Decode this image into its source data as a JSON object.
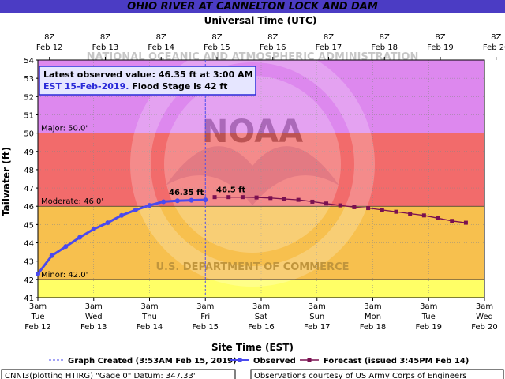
{
  "chart_data": {
    "type": "line",
    "title": "OHIO RIVER AT CANNELTON LOCK AND DAM",
    "top_axis_label": "Universal Time (UTC)",
    "xlabel": "Site Time (EST)",
    "ylabel": "Tailwater (ft)",
    "ylim": [
      41,
      54
    ],
    "xlim_days": [
      "Feb 12 3am",
      "Feb 20 3am"
    ],
    "grid": true,
    "yticks": [
      41,
      42,
      43,
      44,
      45,
      46,
      47,
      48,
      49,
      50,
      51,
      52,
      53,
      54
    ],
    "top_ticks": [
      {
        "l1": "8Z",
        "l2": "Feb 12"
      },
      {
        "l1": "8Z",
        "l2": "Feb 13"
      },
      {
        "l1": "8Z",
        "l2": "Feb 14"
      },
      {
        "l1": "8Z",
        "l2": "Feb 15"
      },
      {
        "l1": "8Z",
        "l2": "Feb 16"
      },
      {
        "l1": "8Z",
        "l2": "Feb 17"
      },
      {
        "l1": "8Z",
        "l2": "Feb 18"
      },
      {
        "l1": "8Z",
        "l2": "Feb 19"
      },
      {
        "l1": "8Z",
        "l2": "Feb 20"
      }
    ],
    "bottom_ticks": [
      {
        "l1": "3am",
        "l2": "Tue",
        "l3": "Feb 12"
      },
      {
        "l1": "3am",
        "l2": "Wed",
        "l3": "Feb 13"
      },
      {
        "l1": "3am",
        "l2": "Thu",
        "l3": "Feb 14"
      },
      {
        "l1": "3am",
        "l2": "Fri",
        "l3": "Feb 15"
      },
      {
        "l1": "3am",
        "l2": "Sat",
        "l3": "Feb 16"
      },
      {
        "l1": "3am",
        "l2": "Sun",
        "l3": "Feb 17"
      },
      {
        "l1": "3am",
        "l2": "Mon",
        "l3": "Feb 18"
      },
      {
        "l1": "3am",
        "l2": "Tue",
        "l3": "Feb 19"
      },
      {
        "l1": "3am",
        "l2": "Wed",
        "l3": "Feb 20"
      }
    ],
    "bands": [
      {
        "from": 41,
        "to": 42,
        "color": "#ffff66"
      },
      {
        "from": 42,
        "to": 46,
        "color": "#f7c04e"
      },
      {
        "from": 46,
        "to": 50,
        "color": "#f26b6b"
      },
      {
        "from": 50,
        "to": 54,
        "color": "#dd88ee"
      }
    ],
    "flood_lines": [
      {
        "label": "Minor:  42.0'",
        "value": 42
      },
      {
        "label": "Moderate:  46.0'",
        "value": 46
      },
      {
        "label": "Major:  50.0'",
        "value": 50
      }
    ],
    "graph_created": "Feb 15 3am",
    "series": [
      {
        "name": "Observed",
        "color": "#4a4aee",
        "point_label": "46.35 ft",
        "x": [
          "Feb 12 3am",
          "Feb 12 9am",
          "Feb 12 3pm",
          "Feb 12 9pm",
          "Feb 13 3am",
          "Feb 13 9am",
          "Feb 13 3pm",
          "Feb 13 9pm",
          "Feb 14 3am",
          "Feb 14 9am",
          "Feb 14 3pm",
          "Feb 14 9pm",
          "Feb 15 3am"
        ],
        "y": [
          42.3,
          43.3,
          43.8,
          44.3,
          44.75,
          45.1,
          45.5,
          45.8,
          46.05,
          46.25,
          46.3,
          46.33,
          46.35
        ]
      },
      {
        "name": "Forecast (issued 3:45PM Feb 14)",
        "color": "#7a1050",
        "point_label": "46.5 ft",
        "x": [
          "Feb 15 7am",
          "Feb 15 1pm",
          "Feb 15 7pm",
          "Feb 16 1am",
          "Feb 16 7am",
          "Feb 16 1pm",
          "Feb 16 7pm",
          "Feb 17 1am",
          "Feb 17 7am",
          "Feb 17 1pm",
          "Feb 17 7pm",
          "Feb 18 1am",
          "Feb 18 7am",
          "Feb 18 1pm",
          "Feb 18 7pm",
          "Feb 19 1am",
          "Feb 19 7am",
          "Feb 19 1pm",
          "Feb 19 7pm"
        ],
        "y": [
          46.5,
          46.5,
          46.5,
          46.48,
          46.45,
          46.4,
          46.35,
          46.25,
          46.15,
          46.05,
          45.95,
          45.9,
          45.8,
          45.7,
          45.6,
          45.5,
          45.35,
          45.2,
          45.1
        ]
      }
    ]
  },
  "infobox": {
    "line1": "Latest observed value:  46.35 ft at 3:00 AM",
    "line2": "EST 15-Feb-2019.",
    "line2b": " Flood Stage is 42 ft"
  },
  "legend": {
    "created": "Graph Created (3:53AM Feb 15, 2019)",
    "observed": "Observed",
    "forecast": "Forecast (issued 3:45PM Feb 14)"
  },
  "watermark": "NOAA",
  "watermark_ring": "NATIONAL OCEANIC AND ATMOSPHERIC ADMINISTRATION",
  "watermark_bottom": "U.S. DEPARTMENT OF COMMERCE",
  "footer": {
    "left": "CNNI3(plotting HTIRG) \"Gage 0\" Datum: 347.33'",
    "right": "Observations courtesy of US Army Corps of Engineers"
  },
  "colors": {
    "header_bg": "#4b3cc4",
    "header_text": "#ffffff",
    "infobox_text": "#2a2ad8",
    "infobox_border": "#2a2ad8"
  }
}
